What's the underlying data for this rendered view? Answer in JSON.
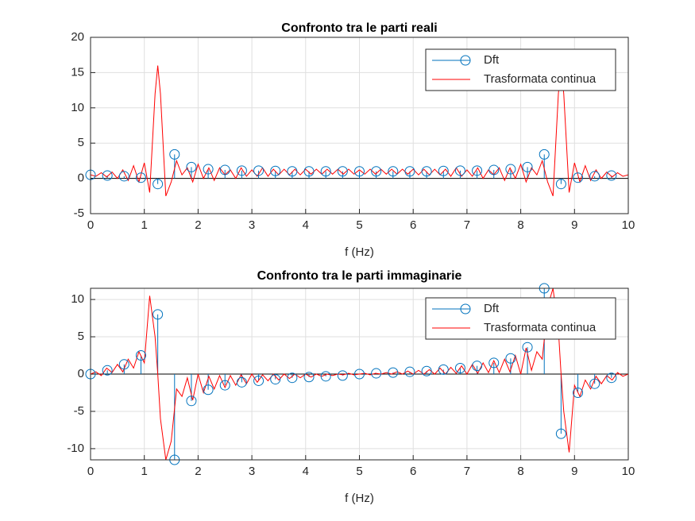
{
  "chart_data": [
    {
      "type": "stem",
      "title": "Confronto tra le parti reali",
      "xlabel": "f (Hz)",
      "xlim": [
        0,
        10
      ],
      "xticks": [
        0,
        1,
        2,
        3,
        4,
        5,
        6,
        7,
        8,
        9,
        10
      ],
      "ylim": [
        -5,
        20
      ],
      "yticks": [
        -5,
        0,
        5,
        10,
        15,
        20
      ],
      "grid": true,
      "legend": "upper right",
      "series": [
        {
          "name": "Dft",
          "type": "stem",
          "color": "#0072bd",
          "x": [
            0,
            0.3125,
            0.625,
            0.9375,
            1.25,
            1.5625,
            1.875,
            2.1875,
            2.5,
            2.8125,
            3.125,
            3.4375,
            3.75,
            4.0625,
            4.375,
            4.6875,
            5,
            5.3125,
            5.625,
            5.9375,
            6.25,
            6.5625,
            6.875,
            7.1875,
            7.5,
            7.8125,
            8.125,
            8.4375,
            8.75,
            9.0625,
            9.375,
            9.6875
          ],
          "values": [
            0.5,
            0.4,
            0.3,
            0.1,
            -0.8,
            3.4,
            1.6,
            1.3,
            1.2,
            1.1,
            1.1,
            1.05,
            1,
            1,
            1,
            1,
            1,
            1,
            1,
            1,
            1,
            1.05,
            1.1,
            1.1,
            1.2,
            1.3,
            1.6,
            3.4,
            -0.8,
            0.1,
            0.3,
            0.4
          ]
        },
        {
          "name": "Trasformata continua",
          "type": "line",
          "color": "#ff0000",
          "x": [
            0,
            0.1,
            0.2,
            0.3,
            0.4,
            0.5,
            0.6,
            0.7,
            0.8,
            0.9,
            1,
            1.1,
            1.2,
            1.25,
            1.3,
            1.4,
            1.5,
            1.6,
            1.7,
            1.8,
            1.9,
            2,
            2.1,
            2.2,
            2.3,
            2.4,
            2.5,
            2.6,
            2.7,
            2.8,
            2.9,
            3,
            3.1,
            3.2,
            3.3,
            3.4,
            3.5,
            3.6,
            3.7,
            3.8,
            3.9,
            4,
            4.1,
            4.2,
            4.3,
            4.4,
            4.5,
            4.6,
            4.7,
            4.8,
            4.9,
            5,
            5.1,
            5.2,
            5.3,
            5.4,
            5.5,
            5.6,
            5.7,
            5.8,
            5.9,
            6,
            6.1,
            6.2,
            6.3,
            6.4,
            6.5,
            6.6,
            6.7,
            6.8,
            6.9,
            7,
            7.1,
            7.2,
            7.3,
            7.4,
            7.5,
            7.6,
            7.7,
            7.8,
            7.9,
            8,
            8.1,
            8.2,
            8.3,
            8.4,
            8.5,
            8.6,
            8.7,
            8.75,
            8.8,
            8.9,
            9,
            9.1,
            9.2,
            9.3,
            9.4,
            9.5,
            9.6,
            9.7,
            9.8,
            9.9,
            10
          ],
          "values": [
            0.5,
            0.3,
            0.8,
            0.2,
            0.9,
            0,
            1.2,
            -0.3,
            1.8,
            -0.5,
            2.2,
            -2,
            12,
            16,
            12,
            -2.5,
            -0.5,
            2.5,
            0.5,
            1.5,
            -0.5,
            2,
            0,
            1.5,
            -0.3,
            1.5,
            0.5,
            1.2,
            0,
            1.5,
            0.3,
            1.2,
            0.3,
            1.5,
            0.3,
            1.3,
            0.5,
            1.3,
            0.5,
            1.3,
            0.5,
            1.3,
            0.6,
            1.3,
            0.6,
            1.3,
            0.6,
            1.3,
            0.6,
            1.3,
            0.6,
            1.2,
            0.6,
            1.3,
            0.6,
            1.3,
            0.6,
            1.3,
            0.6,
            1.3,
            0.6,
            1.3,
            0.5,
            1.3,
            0.5,
            1.3,
            0.5,
            1.3,
            0.3,
            1.5,
            0.3,
            1.2,
            0.3,
            1.5,
            0,
            1.2,
            0.5,
            1.5,
            -0.3,
            1.5,
            0,
            2,
            -0.5,
            1.5,
            0.5,
            2.5,
            -0.5,
            -2.5,
            12,
            16,
            12,
            -2,
            2.2,
            -0.5,
            1.8,
            -0.3,
            1.2,
            0,
            0.9,
            0.2,
            0.8,
            0.3,
            0.5
          ]
        }
      ]
    },
    {
      "type": "stem",
      "title": "Confronto tra le parti immaginarie",
      "xlabel": "f (Hz)",
      "xlim": [
        0,
        10
      ],
      "xticks": [
        0,
        1,
        2,
        3,
        4,
        5,
        6,
        7,
        8,
        9,
        10
      ],
      "ylim": [
        -11.5,
        11.5
      ],
      "yticks": [
        -10,
        -5,
        0,
        5,
        10
      ],
      "grid": true,
      "legend": "upper right",
      "series": [
        {
          "name": "Dft",
          "type": "stem",
          "color": "#0072bd",
          "x": [
            0,
            0.3125,
            0.625,
            0.9375,
            1.25,
            1.5625,
            1.875,
            2.1875,
            2.5,
            2.8125,
            3.125,
            3.4375,
            3.75,
            4.0625,
            4.375,
            4.6875,
            5,
            5.3125,
            5.625,
            5.9375,
            6.25,
            6.5625,
            6.875,
            7.1875,
            7.5,
            7.8125,
            8.125,
            8.4375,
            8.75,
            9.0625,
            9.375,
            9.6875
          ],
          "values": [
            0,
            0.5,
            1.3,
            2.5,
            8,
            -11.5,
            -3.6,
            -2.1,
            -1.5,
            -1.1,
            -0.9,
            -0.7,
            -0.5,
            -0.4,
            -0.3,
            -0.2,
            0,
            0.1,
            0.2,
            0.3,
            0.4,
            0.6,
            0.8,
            1.1,
            1.5,
            2.1,
            3.6,
            11.5,
            -8,
            -2.5,
            -1.3,
            -0.5
          ]
        },
        {
          "name": "Trasformata continua",
          "type": "line",
          "color": "#ff0000",
          "x": [
            0,
            0.1,
            0.2,
            0.3,
            0.4,
            0.5,
            0.6,
            0.7,
            0.8,
            0.9,
            1,
            1.1,
            1.2,
            1.25,
            1.3,
            1.4,
            1.5,
            1.6,
            1.7,
            1.8,
            1.9,
            2,
            2.1,
            2.2,
            2.3,
            2.4,
            2.5,
            2.6,
            2.7,
            2.8,
            2.9,
            3,
            3.1,
            3.2,
            3.3,
            3.4,
            3.5,
            3.6,
            3.7,
            3.8,
            3.9,
            4,
            4.1,
            4.2,
            4.3,
            4.4,
            4.5,
            4.6,
            4.7,
            4.8,
            4.9,
            5,
            5.1,
            5.2,
            5.3,
            5.4,
            5.5,
            5.6,
            5.7,
            5.8,
            5.9,
            6,
            6.1,
            6.2,
            6.3,
            6.4,
            6.5,
            6.6,
            6.7,
            6.8,
            6.9,
            7,
            7.1,
            7.2,
            7.3,
            7.4,
            7.5,
            7.6,
            7.7,
            7.8,
            7.9,
            8,
            8.1,
            8.2,
            8.3,
            8.4,
            8.5,
            8.6,
            8.7,
            8.75,
            8.8,
            8.9,
            9,
            9.1,
            9.2,
            9.3,
            9.4,
            9.5,
            9.6,
            9.7,
            9.8,
            9.9,
            10
          ],
          "values": [
            0,
            0.3,
            -0.2,
            0.8,
            0.2,
            1.3,
            0.3,
            2,
            0.8,
            3,
            1.5,
            10.5,
            5,
            0,
            -6,
            -11.5,
            -9,
            -2,
            -3,
            -0.5,
            -3.5,
            0,
            -2.5,
            -0.3,
            -2,
            -0.2,
            -1.8,
            -0.2,
            -1.5,
            -0.1,
            -1.3,
            0,
            -1.1,
            -0.1,
            -0.9,
            0,
            -0.8,
            0,
            -0.6,
            0,
            -0.5,
            0,
            -0.4,
            0,
            -0.3,
            0,
            -0.2,
            0,
            -0.1,
            0.1,
            -0.1,
            0,
            0.1,
            -0.1,
            0.1,
            0,
            0.2,
            0,
            0.3,
            0,
            0.4,
            0,
            0.5,
            0,
            0.6,
            0,
            0.8,
            0,
            0.9,
            0.1,
            1.1,
            0,
            1.3,
            0.1,
            1.5,
            0.2,
            1.8,
            0.2,
            2,
            0.3,
            2.5,
            0,
            3.5,
            0.5,
            3,
            2,
            9,
            11.5,
            6,
            0,
            -5,
            -10.5,
            -1.5,
            -3,
            -0.8,
            -2,
            -0.3,
            -1.3,
            -0.2,
            -0.8,
            0.2,
            -0.3,
            0
          ]
        }
      ]
    }
  ]
}
